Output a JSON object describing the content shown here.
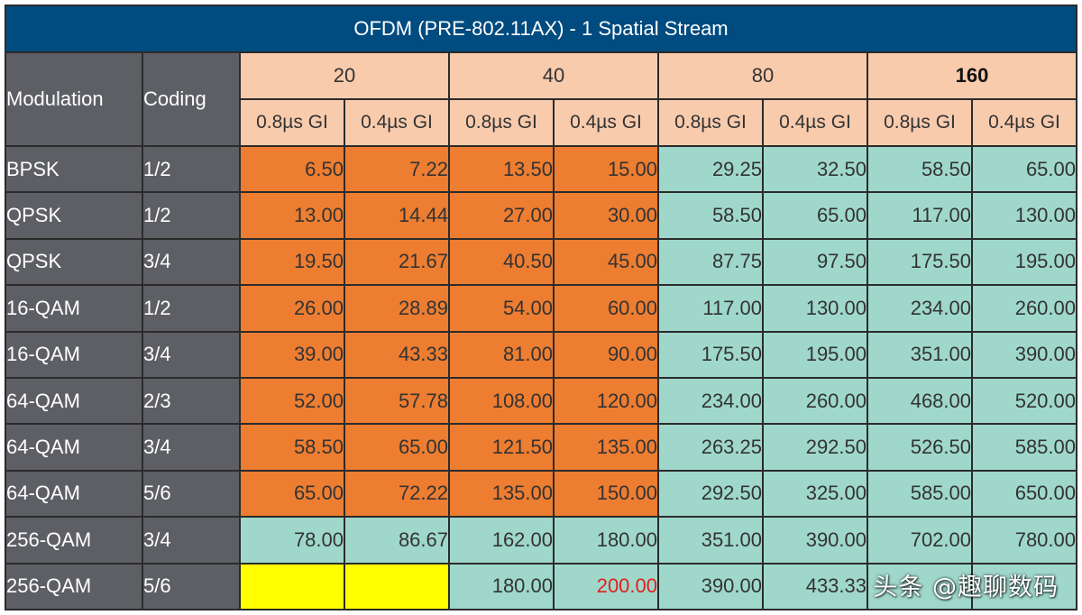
{
  "title": "OFDM (PRE-802.11AX) - 1 Spatial Stream",
  "headers": {
    "modulation": "Modulation",
    "coding": "Coding",
    "bandwidths": [
      "20",
      "40",
      "80",
      "160"
    ],
    "gi": [
      "0.8µs GI",
      "0.4µs GI",
      "0.8µs GI",
      "0.4µs GI",
      "0.8µs GI",
      "0.4µs GI",
      "0.8µs GI",
      "0.4µs GI"
    ]
  },
  "rows": [
    {
      "modulation": "BPSK",
      "coding": "1/2",
      "values": [
        "6.50",
        "7.22",
        "13.50",
        "15.00",
        "29.25",
        "32.50",
        "58.50",
        "65.00"
      ]
    },
    {
      "modulation": "QPSK",
      "coding": "1/2",
      "values": [
        "13.00",
        "14.44",
        "27.00",
        "30.00",
        "58.50",
        "65.00",
        "117.00",
        "130.00"
      ]
    },
    {
      "modulation": "QPSK",
      "coding": "3/4",
      "values": [
        "19.50",
        "21.67",
        "40.50",
        "45.00",
        "87.75",
        "97.50",
        "175.50",
        "195.00"
      ]
    },
    {
      "modulation": "16-QAM",
      "coding": "1/2",
      "values": [
        "26.00",
        "28.89",
        "54.00",
        "60.00",
        "117.00",
        "130.00",
        "234.00",
        "260.00"
      ]
    },
    {
      "modulation": "16-QAM",
      "coding": "3/4",
      "values": [
        "39.00",
        "43.33",
        "81.00",
        "90.00",
        "175.50",
        "195.00",
        "351.00",
        "390.00"
      ]
    },
    {
      "modulation": "64-QAM",
      "coding": "2/3",
      "values": [
        "52.00",
        "57.78",
        "108.00",
        "120.00",
        "234.00",
        "260.00",
        "468.00",
        "520.00"
      ]
    },
    {
      "modulation": "64-QAM",
      "coding": "3/4",
      "values": [
        "58.50",
        "65.00",
        "121.50",
        "135.00",
        "263.25",
        "292.50",
        "526.50",
        "585.00"
      ]
    },
    {
      "modulation": "64-QAM",
      "coding": "5/6",
      "values": [
        "65.00",
        "72.22",
        "135.00",
        "150.00",
        "292.50",
        "325.00",
        "585.00",
        "650.00"
      ]
    },
    {
      "modulation": "256-QAM",
      "coding": "3/4",
      "values": [
        "78.00",
        "86.67",
        "162.00",
        "180.00",
        "351.00",
        "390.00",
        "702.00",
        "780.00"
      ]
    },
    {
      "modulation": "256-QAM",
      "coding": "5/6",
      "values": [
        "",
        "",
        "180.00",
        "200.00",
        "390.00",
        "433.33",
        "",
        ""
      ]
    }
  ],
  "watermark": "头条 @趣聊数码",
  "colors": {
    "title_bg": "#004b7f",
    "row_header_bg": "#5d5f64",
    "column_header_bg": "#f8cbad",
    "orange": "#ed7d31",
    "teal": "#9fd8cb",
    "yellow": "#ffff00",
    "highlight_text": "#e0201e"
  }
}
